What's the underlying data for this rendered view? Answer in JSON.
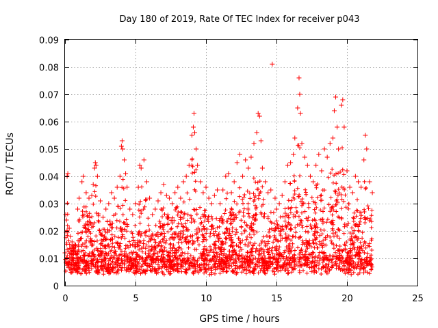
{
  "chart_data": {
    "type": "scatter",
    "title": "Day 180 of 2019, Rate Of TEC Index for receiver p043",
    "xlabel": "GPS time / hours",
    "ylabel": "ROTI / TECUs",
    "xlim": [
      0,
      25
    ],
    "ylim": [
      0,
      0.09
    ],
    "x_ticks": [
      0,
      5,
      10,
      15,
      20,
      25
    ],
    "y_ticks": [
      0,
      0.01,
      0.02,
      0.03,
      0.04,
      0.05,
      0.06,
      0.07,
      0.08,
      0.09
    ],
    "x_tick_labels": [
      "0",
      "5",
      "10",
      "15",
      "20",
      "25"
    ],
    "y_tick_labels": [
      "0",
      "0.01",
      "0.02",
      "0.03",
      "0.04",
      "0.05",
      "0.06",
      "0.07",
      "0.08",
      "0.09"
    ],
    "grid": true,
    "marker": "+",
    "color": "#ff0000",
    "series": [
      {
        "name": "ROTI",
        "points": [
          [
            0.0,
            0.012
          ],
          [
            0.05,
            0.026
          ],
          [
            0.1,
            0.024
          ],
          [
            0.15,
            0.04
          ],
          [
            0.2,
            0.041
          ],
          [
            0.3,
            0.021
          ],
          [
            0.4,
            0.018
          ],
          [
            0.5,
            0.016
          ],
          [
            0.7,
            0.015
          ],
          [
            0.9,
            0.028
          ],
          [
            1.0,
            0.032
          ],
          [
            1.2,
            0.038
          ],
          [
            1.3,
            0.04
          ],
          [
            1.5,
            0.034
          ],
          [
            1.7,
            0.032
          ],
          [
            1.9,
            0.033
          ],
          [
            2.0,
            0.037
          ],
          [
            2.1,
            0.043
          ],
          [
            2.15,
            0.045
          ],
          [
            2.2,
            0.044
          ],
          [
            2.3,
            0.04
          ],
          [
            2.5,
            0.031
          ],
          [
            2.7,
            0.025
          ],
          [
            2.9,
            0.028
          ],
          [
            3.1,
            0.03
          ],
          [
            3.3,
            0.034
          ],
          [
            3.5,
            0.032
          ],
          [
            3.7,
            0.036
          ],
          [
            3.9,
            0.04
          ],
          [
            4.0,
            0.051
          ],
          [
            4.05,
            0.053
          ],
          [
            4.1,
            0.05
          ],
          [
            4.2,
            0.046
          ],
          [
            4.3,
            0.041
          ],
          [
            4.4,
            0.036
          ],
          [
            4.6,
            0.028
          ],
          [
            4.8,
            0.026
          ],
          [
            5.0,
            0.03
          ],
          [
            5.2,
            0.036
          ],
          [
            5.3,
            0.044
          ],
          [
            5.4,
            0.043
          ],
          [
            5.6,
            0.046
          ],
          [
            5.8,
            0.038
          ],
          [
            6.0,
            0.032
          ],
          [
            6.2,
            0.026
          ],
          [
            6.4,
            0.028
          ],
          [
            6.6,
            0.031
          ],
          [
            6.8,
            0.034
          ],
          [
            7.0,
            0.037
          ],
          [
            7.2,
            0.033
          ],
          [
            7.4,
            0.032
          ],
          [
            7.6,
            0.03
          ],
          [
            7.8,
            0.034
          ],
          [
            8.0,
            0.036
          ],
          [
            8.2,
            0.032
          ],
          [
            8.4,
            0.038
          ],
          [
            8.6,
            0.04
          ],
          [
            8.8,
            0.044
          ],
          [
            9.0,
            0.055
          ],
          [
            9.1,
            0.058
          ],
          [
            9.15,
            0.063
          ],
          [
            9.2,
            0.056
          ],
          [
            9.3,
            0.05
          ],
          [
            9.4,
            0.044
          ],
          [
            9.6,
            0.038
          ],
          [
            9.8,
            0.034
          ],
          [
            10.0,
            0.036
          ],
          [
            10.2,
            0.032
          ],
          [
            10.4,
            0.03
          ],
          [
            10.6,
            0.033
          ],
          [
            10.8,
            0.035
          ],
          [
            11.0,
            0.03
          ],
          [
            11.2,
            0.035
          ],
          [
            11.4,
            0.04
          ],
          [
            11.6,
            0.041
          ],
          [
            11.8,
            0.034
          ],
          [
            12.0,
            0.038
          ],
          [
            12.2,
            0.045
          ],
          [
            12.4,
            0.048
          ],
          [
            12.6,
            0.04
          ],
          [
            12.8,
            0.046
          ],
          [
            13.0,
            0.043
          ],
          [
            13.2,
            0.047
          ],
          [
            13.4,
            0.052
          ],
          [
            13.6,
            0.056
          ],
          [
            13.7,
            0.063
          ],
          [
            13.8,
            0.062
          ],
          [
            13.9,
            0.053
          ],
          [
            14.0,
            0.043
          ],
          [
            14.2,
            0.038
          ],
          [
            14.4,
            0.034
          ],
          [
            14.6,
            0.035
          ],
          [
            14.7,
            0.081
          ],
          [
            14.9,
            0.032
          ],
          [
            15.0,
            0.028
          ],
          [
            15.2,
            0.03
          ],
          [
            15.4,
            0.033
          ],
          [
            15.6,
            0.038
          ],
          [
            15.8,
            0.044
          ],
          [
            16.0,
            0.045
          ],
          [
            16.2,
            0.048
          ],
          [
            16.3,
            0.054
          ],
          [
            16.5,
            0.065
          ],
          [
            16.6,
            0.076
          ],
          [
            16.65,
            0.07
          ],
          [
            16.7,
            0.063
          ],
          [
            16.8,
            0.052
          ],
          [
            17.0,
            0.047
          ],
          [
            17.2,
            0.044
          ],
          [
            17.4,
            0.04
          ],
          [
            17.6,
            0.038
          ],
          [
            17.8,
            0.044
          ],
          [
            18.0,
            0.048
          ],
          [
            18.2,
            0.042
          ],
          [
            18.4,
            0.05
          ],
          [
            18.6,
            0.047
          ],
          [
            18.8,
            0.052
          ],
          [
            19.0,
            0.054
          ],
          [
            19.1,
            0.064
          ],
          [
            19.2,
            0.069
          ],
          [
            19.3,
            0.058
          ],
          [
            19.4,
            0.05
          ],
          [
            19.6,
            0.066
          ],
          [
            19.7,
            0.068
          ],
          [
            19.8,
            0.058
          ],
          [
            20.0,
            0.042
          ],
          [
            20.2,
            0.036
          ],
          [
            20.4,
            0.034
          ],
          [
            20.6,
            0.04
          ],
          [
            20.8,
            0.038
          ],
          [
            21.0,
            0.036
          ],
          [
            21.2,
            0.046
          ],
          [
            21.3,
            0.055
          ],
          [
            21.4,
            0.05
          ],
          [
            21.6,
            0.038
          ],
          [
            21.8,
            0.034
          ]
        ]
      }
    ]
  }
}
